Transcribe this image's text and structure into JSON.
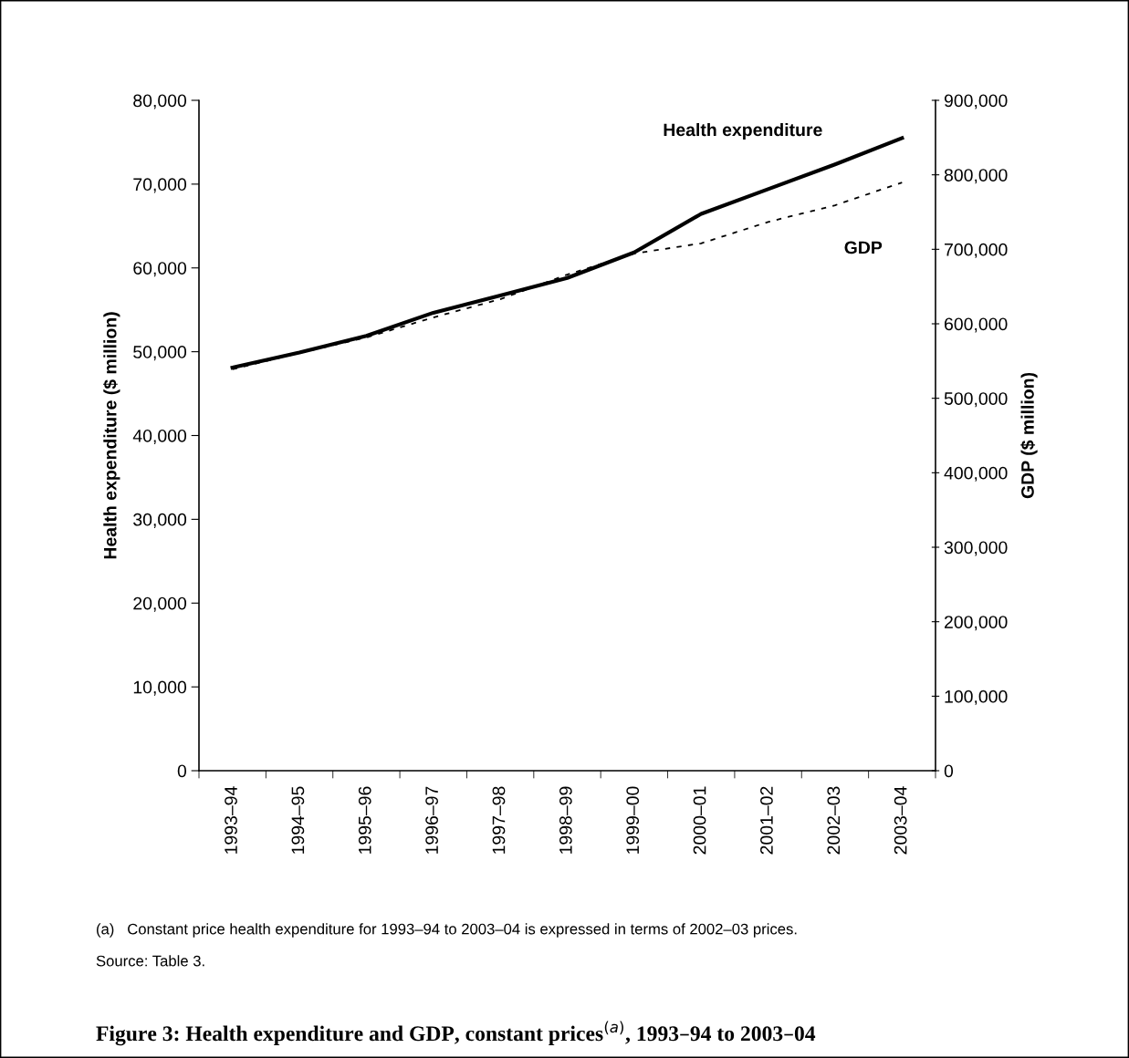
{
  "chart_data": {
    "type": "line",
    "title": "Figure 3: Health expenditure and GDP, constant prices$^{(a)}$, 1993–94 to 2003–04",
    "ylabel": "Health expenditure ($ million)",
    "y2label": "GDP ($ million)",
    "categories": [
      "1993–94",
      "1994–95",
      "1995–96",
      "1996–97",
      "1997–98",
      "1998–99",
      "1999–00",
      "2000–01",
      "2001–02",
      "2002–03",
      "2003–04"
    ],
    "series": [
      {
        "name": "Health expenditure",
        "color": "#000000",
        "line_style": "solid",
        "values": [
          48100,
          49900,
          51900,
          54650,
          56700,
          58800,
          61850,
          66450,
          69400,
          72350,
          75500
        ]
      },
      {
        "name": "GDP",
        "color": "#000000",
        "line_style": "dashed",
        "axis": "y2",
        "values": [
          538800,
          560800,
          581600,
          608500,
          633000,
          666000,
          694300,
          708000,
          736700,
          759100,
          789700
        ]
      }
    ],
    "ylim": [
      0,
      80000
    ],
    "yticks": [
      {
        "value": 0,
        "label": "0"
      },
      {
        "value": 10000,
        "label": "10,000"
      },
      {
        "value": 20000,
        "label": "20,000"
      },
      {
        "value": 30000,
        "label": "30,000"
      },
      {
        "value": 40000,
        "label": "40,000"
      },
      {
        "value": 50000,
        "label": "50,000"
      },
      {
        "value": 60000,
        "label": "60,000"
      },
      {
        "value": 70000,
        "label": "70,000"
      },
      {
        "value": 80000,
        "label": "80,000"
      }
    ],
    "y2lim": [
      0,
      900000
    ],
    "y2ticks": [
      {
        "value": 0,
        "label": "0"
      },
      {
        "value": 100000,
        "label": "100,000"
      },
      {
        "value": 200000,
        "label": "200,000"
      },
      {
        "value": 300000,
        "label": "300,000"
      },
      {
        "value": 400000,
        "label": "400,000"
      },
      {
        "value": 500000,
        "label": "500,000"
      },
      {
        "value": 600000,
        "label": "600,000"
      },
      {
        "value": 700000,
        "label": "700,000"
      },
      {
        "value": 800000,
        "label": "800,000"
      },
      {
        "value": 900000,
        "label": "900,000"
      }
    ],
    "grid": false,
    "legend": false,
    "marker": "none",
    "annotations": [
      "(a)   Constant price health expenditure for 1993–94 to 2003–04 is expressed in terms of 2002–03 prices.",
      "Source: Table 3."
    ]
  }
}
